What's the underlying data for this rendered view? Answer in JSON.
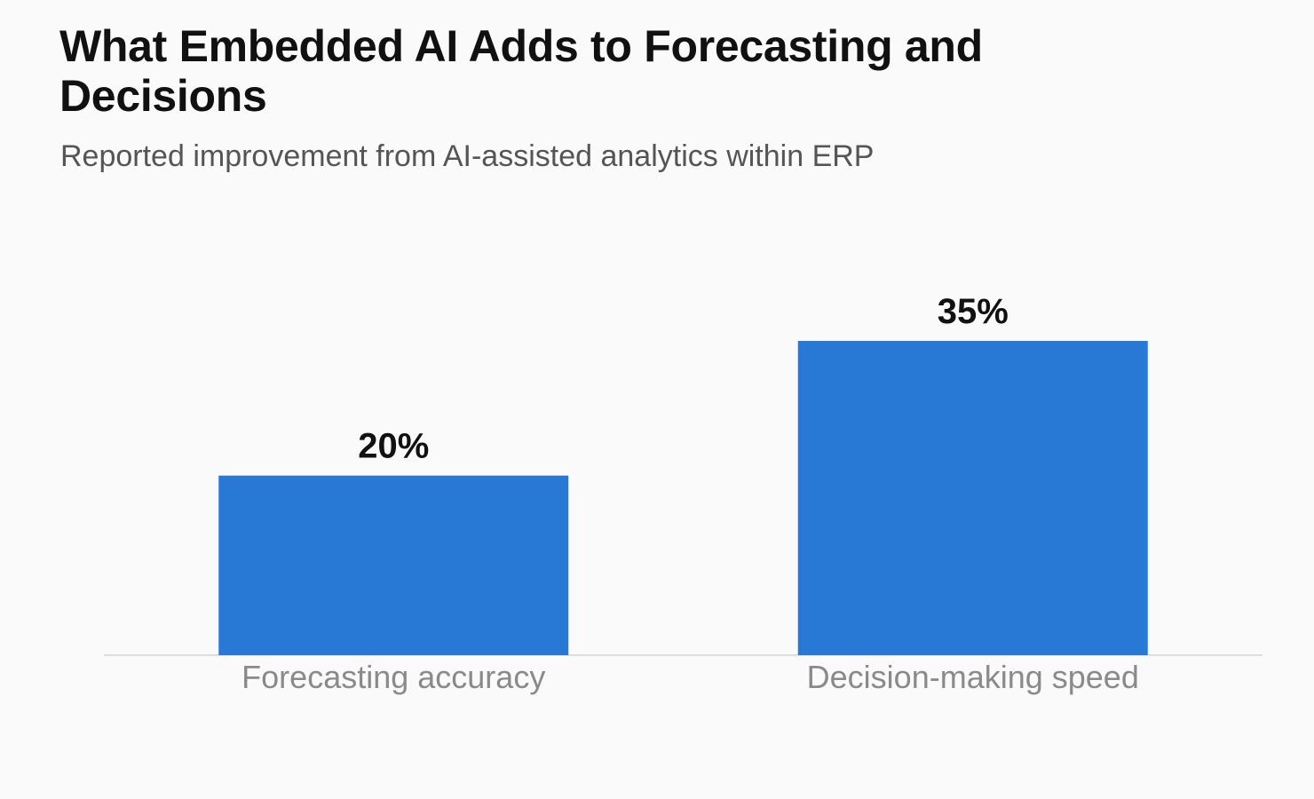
{
  "header": {
    "title": "What Embedded AI Adds to Forecasting and Decisions",
    "subtitle": "Reported improvement from AI-assisted analytics within ERP"
  },
  "chart_data": {
    "type": "bar",
    "title": "What Embedded AI Adds to Forecasting and Decisions",
    "subtitle": "Reported improvement from AI-assisted analytics within ERP",
    "categories": [
      "Forecasting accuracy",
      "Decision-making speed"
    ],
    "values": [
      20,
      35
    ],
    "value_labels": [
      "20%",
      "35%"
    ],
    "unit": "%",
    "ylim": [
      0,
      40
    ],
    "grid": false,
    "legend": "none",
    "colors": {
      "bar": "#2878d6",
      "baseline": "#dddddd"
    }
  }
}
